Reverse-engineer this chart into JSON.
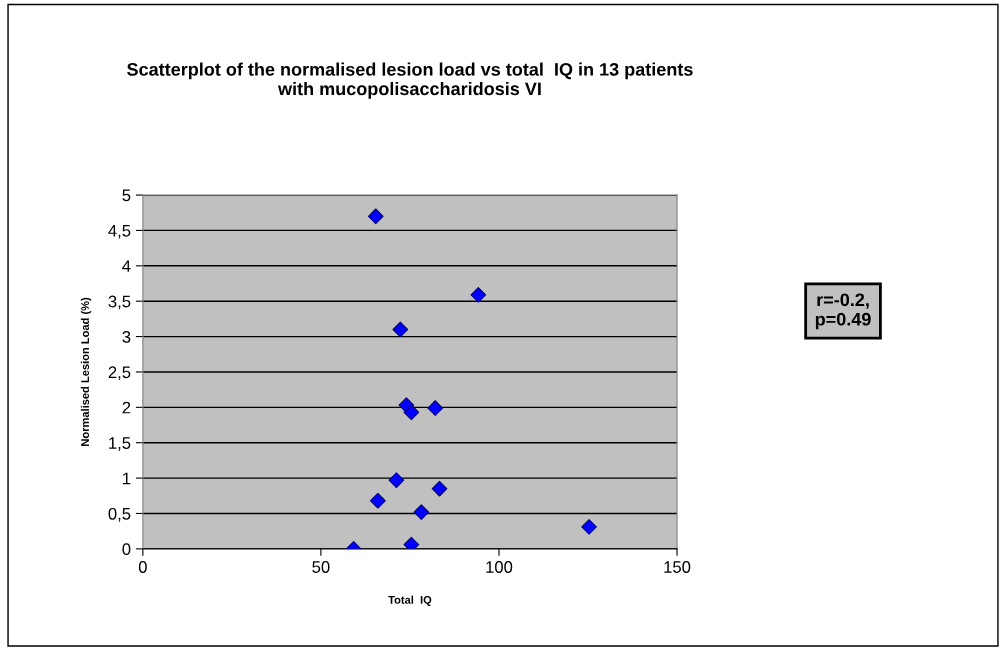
{
  "chart_data": {
    "type": "scatter",
    "title": "Scatterplot of the normalised lesion load vs total  IQ in 13 patients\nwith mucopolisaccharidosis VI",
    "xlabel": "Total  IQ",
    "ylabel": "Normalised Lesion Load (%)",
    "x": [
      65.4,
      72.3,
      74.0,
      75.4,
      71.2,
      66.0,
      59.2,
      75.4,
      94.2,
      82.1,
      83.3,
      78.2,
      125.3
    ],
    "series": [
      {
        "color": "#0000ff",
        "values": [
          4.7,
          3.1,
          2.03,
          1.93,
          0.97,
          0.68,
          0.0,
          0.06,
          3.59,
          1.99,
          0.85,
          0.52,
          0.31
        ]
      }
    ],
    "xlim": [
      0,
      150
    ],
    "xticks": [
      0,
      50,
      100,
      150
    ],
    "ylim": [
      0,
      5
    ],
    "yticks": [
      0,
      {
        "value": 0.5,
        "label": "0,5"
      },
      1,
      {
        "value": 1.5,
        "label": "1,5"
      },
      2,
      {
        "value": 2.5,
        "label": "2,5"
      },
      3,
      {
        "value": 3.5,
        "label": "3,5"
      },
      4,
      {
        "value": 4.5,
        "label": "4,5"
      },
      5
    ],
    "grid": "y",
    "marker": "diamond",
    "legend": false,
    "annotations": [
      "r=-0.2,\np=0.49"
    ]
  }
}
